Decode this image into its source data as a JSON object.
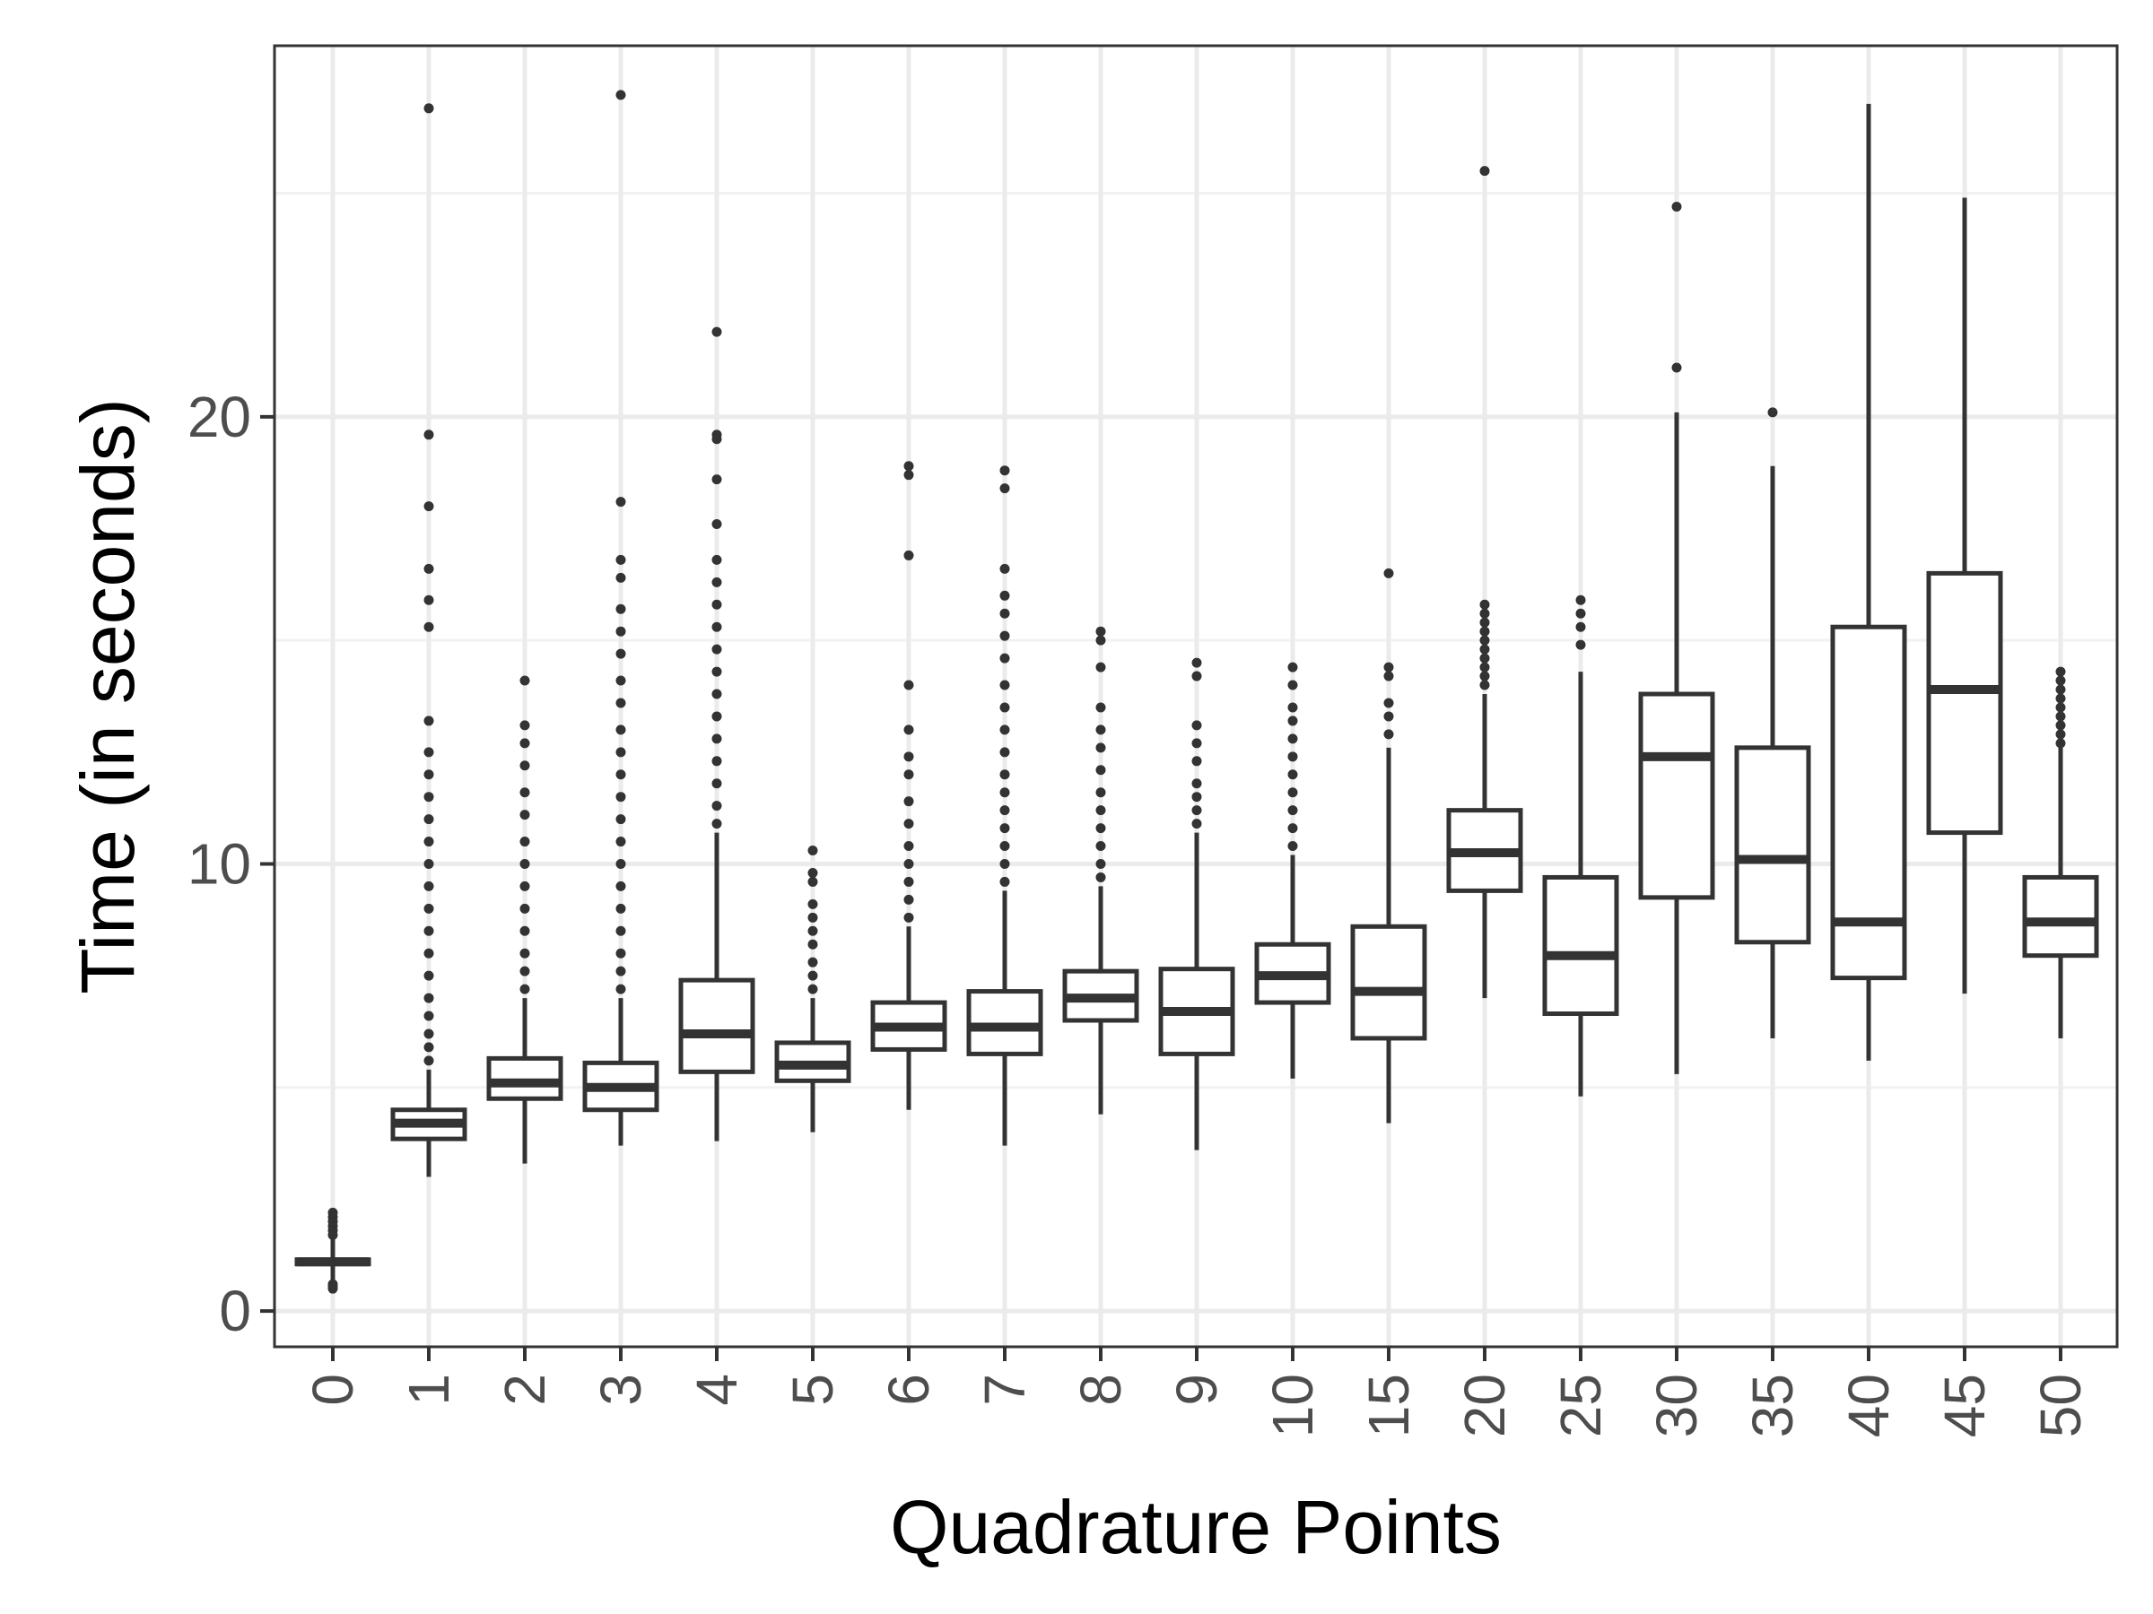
{
  "chart_data": {
    "type": "boxplot",
    "title": "",
    "xlabel": "Quadrature Points",
    "ylabel": "Time (in seconds)",
    "ylim": [
      -0.8,
      28.3
    ],
    "yticks": [
      0,
      10,
      20
    ],
    "grid": true,
    "legend": "none",
    "colors": {
      "box_stroke": "#333333",
      "grid_major": "#ebebeb",
      "grid_minor": "#f2f2f2",
      "panel_border": "#333333",
      "tick_text": "#4d4d4d",
      "title_text": "#000000"
    },
    "categories": [
      "0",
      "1",
      "2",
      "3",
      "4",
      "5",
      "6",
      "7",
      "8",
      "9",
      "10",
      "15",
      "20",
      "25",
      "30",
      "35",
      "40",
      "45",
      "50"
    ],
    "boxes": [
      {
        "category": "0",
        "lower_whisker": 0.7,
        "q1": 1.05,
        "median": 1.1,
        "q3": 1.15,
        "upper_whisker": 1.6,
        "outliers": [
          0.5,
          0.55,
          0.6,
          1.7,
          1.8,
          1.9,
          2.0,
          2.1,
          2.2
        ]
      },
      {
        "category": "1",
        "lower_whisker": 3.0,
        "q1": 3.85,
        "median": 4.2,
        "q3": 4.5,
        "upper_whisker": 5.4,
        "outliers": [
          5.6,
          5.9,
          6.2,
          6.6,
          7.0,
          7.5,
          8.0,
          8.5,
          9.0,
          9.5,
          10.0,
          10.5,
          11.0,
          11.5,
          12.0,
          12.5,
          13.2,
          15.3,
          15.9,
          16.6,
          18.0,
          19.6,
          26.9
        ]
      },
      {
        "category": "2",
        "lower_whisker": 3.3,
        "q1": 4.75,
        "median": 5.1,
        "q3": 5.65,
        "upper_whisker": 7.0,
        "outliers": [
          7.2,
          7.6,
          8.0,
          8.5,
          9.0,
          9.5,
          10.0,
          10.5,
          11.1,
          11.6,
          12.2,
          12.7,
          13.1,
          14.1
        ]
      },
      {
        "category": "3",
        "lower_whisker": 3.7,
        "q1": 4.5,
        "median": 5.0,
        "q3": 5.55,
        "upper_whisker": 7.0,
        "outliers": [
          7.2,
          7.6,
          8.0,
          8.5,
          9.0,
          9.5,
          10.0,
          10.5,
          11.0,
          11.5,
          12.0,
          12.5,
          13.0,
          13.6,
          14.1,
          14.7,
          15.2,
          15.7,
          16.4,
          16.8,
          18.1,
          27.2
        ]
      },
      {
        "category": "4",
        "lower_whisker": 3.8,
        "q1": 5.35,
        "median": 6.2,
        "q3": 7.4,
        "upper_whisker": 10.7,
        "outliers": [
          10.9,
          11.3,
          11.8,
          12.3,
          12.8,
          13.3,
          13.8,
          14.3,
          14.8,
          15.3,
          15.8,
          16.3,
          16.8,
          17.6,
          18.6,
          19.5,
          19.6,
          21.9
        ]
      },
      {
        "category": "5",
        "lower_whisker": 4.0,
        "q1": 5.15,
        "median": 5.5,
        "q3": 6.0,
        "upper_whisker": 7.0,
        "outliers": [
          7.2,
          7.5,
          7.8,
          8.2,
          8.5,
          8.8,
          9.1,
          9.6,
          9.8,
          10.3
        ]
      },
      {
        "category": "6",
        "lower_whisker": 4.5,
        "q1": 5.85,
        "median": 6.35,
        "q3": 6.9,
        "upper_whisker": 8.6,
        "outliers": [
          8.8,
          9.2,
          9.6,
          10.0,
          10.4,
          10.9,
          11.4,
          12.0,
          12.4,
          13.0,
          14.0,
          16.9,
          18.7,
          18.9
        ]
      },
      {
        "category": "7",
        "lower_whisker": 3.7,
        "q1": 5.75,
        "median": 6.35,
        "q3": 7.15,
        "upper_whisker": 9.4,
        "outliers": [
          9.6,
          10.0,
          10.4,
          10.8,
          11.2,
          11.6,
          12.0,
          12.5,
          13.0,
          13.5,
          14.0,
          14.6,
          15.1,
          15.6,
          16.0,
          16.6,
          18.4,
          18.8
        ]
      },
      {
        "category": "8",
        "lower_whisker": 4.4,
        "q1": 6.5,
        "median": 7.0,
        "q3": 7.6,
        "upper_whisker": 9.5,
        "outliers": [
          9.7,
          10.0,
          10.4,
          10.8,
          11.2,
          11.6,
          12.1,
          12.6,
          13.0,
          13.5,
          14.4,
          15.0,
          15.2
        ]
      },
      {
        "category": "9",
        "lower_whisker": 3.6,
        "q1": 5.75,
        "median": 6.7,
        "q3": 7.65,
        "upper_whisker": 10.7,
        "outliers": [
          10.9,
          11.2,
          11.5,
          11.8,
          12.3,
          12.7,
          13.1,
          14.2,
          14.5
        ]
      },
      {
        "category": "10",
        "lower_whisker": 5.2,
        "q1": 6.9,
        "median": 7.5,
        "q3": 8.2,
        "upper_whisker": 10.2,
        "outliers": [
          10.4,
          10.8,
          11.2,
          11.6,
          12.0,
          12.4,
          12.8,
          13.2,
          13.5,
          14.0,
          14.4
        ]
      },
      {
        "category": "15",
        "lower_whisker": 4.2,
        "q1": 6.1,
        "median": 7.15,
        "q3": 8.6,
        "upper_whisker": 12.6,
        "outliers": [
          12.9,
          13.3,
          13.6,
          14.2,
          14.4,
          16.5
        ]
      },
      {
        "category": "20",
        "lower_whisker": 7.0,
        "q1": 9.4,
        "median": 10.25,
        "q3": 11.2,
        "upper_whisker": 13.8,
        "outliers": [
          14.0,
          14.2,
          14.4,
          14.6,
          14.8,
          15.0,
          15.2,
          15.4,
          15.6,
          15.8,
          25.5
        ]
      },
      {
        "category": "25",
        "lower_whisker": 4.8,
        "q1": 6.65,
        "median": 7.95,
        "q3": 9.7,
        "upper_whisker": 14.3,
        "outliers": [
          14.9,
          15.3,
          15.6,
          15.9
        ]
      },
      {
        "category": "30",
        "lower_whisker": 5.3,
        "q1": 9.25,
        "median": 12.4,
        "q3": 13.8,
        "upper_whisker": 20.1,
        "outliers": [
          21.1,
          24.7
        ]
      },
      {
        "category": "35",
        "lower_whisker": 6.1,
        "q1": 8.25,
        "median": 10.1,
        "q3": 12.6,
        "upper_whisker": 18.9,
        "outliers": [
          20.1
        ]
      },
      {
        "category": "40",
        "lower_whisker": 5.6,
        "q1": 7.45,
        "median": 8.7,
        "q3": 15.3,
        "upper_whisker": 27.0,
        "outliers": []
      },
      {
        "category": "45",
        "lower_whisker": 7.1,
        "q1": 10.7,
        "median": 13.9,
        "q3": 16.5,
        "upper_whisker": 24.9,
        "outliers": []
      },
      {
        "category": "50",
        "lower_whisker": 6.1,
        "q1": 7.95,
        "median": 8.7,
        "q3": 9.7,
        "upper_whisker": 12.6,
        "outliers": [
          12.7,
          12.9,
          13.1,
          13.3,
          13.5,
          13.7,
          13.9,
          14.1,
          14.3
        ]
      }
    ]
  }
}
